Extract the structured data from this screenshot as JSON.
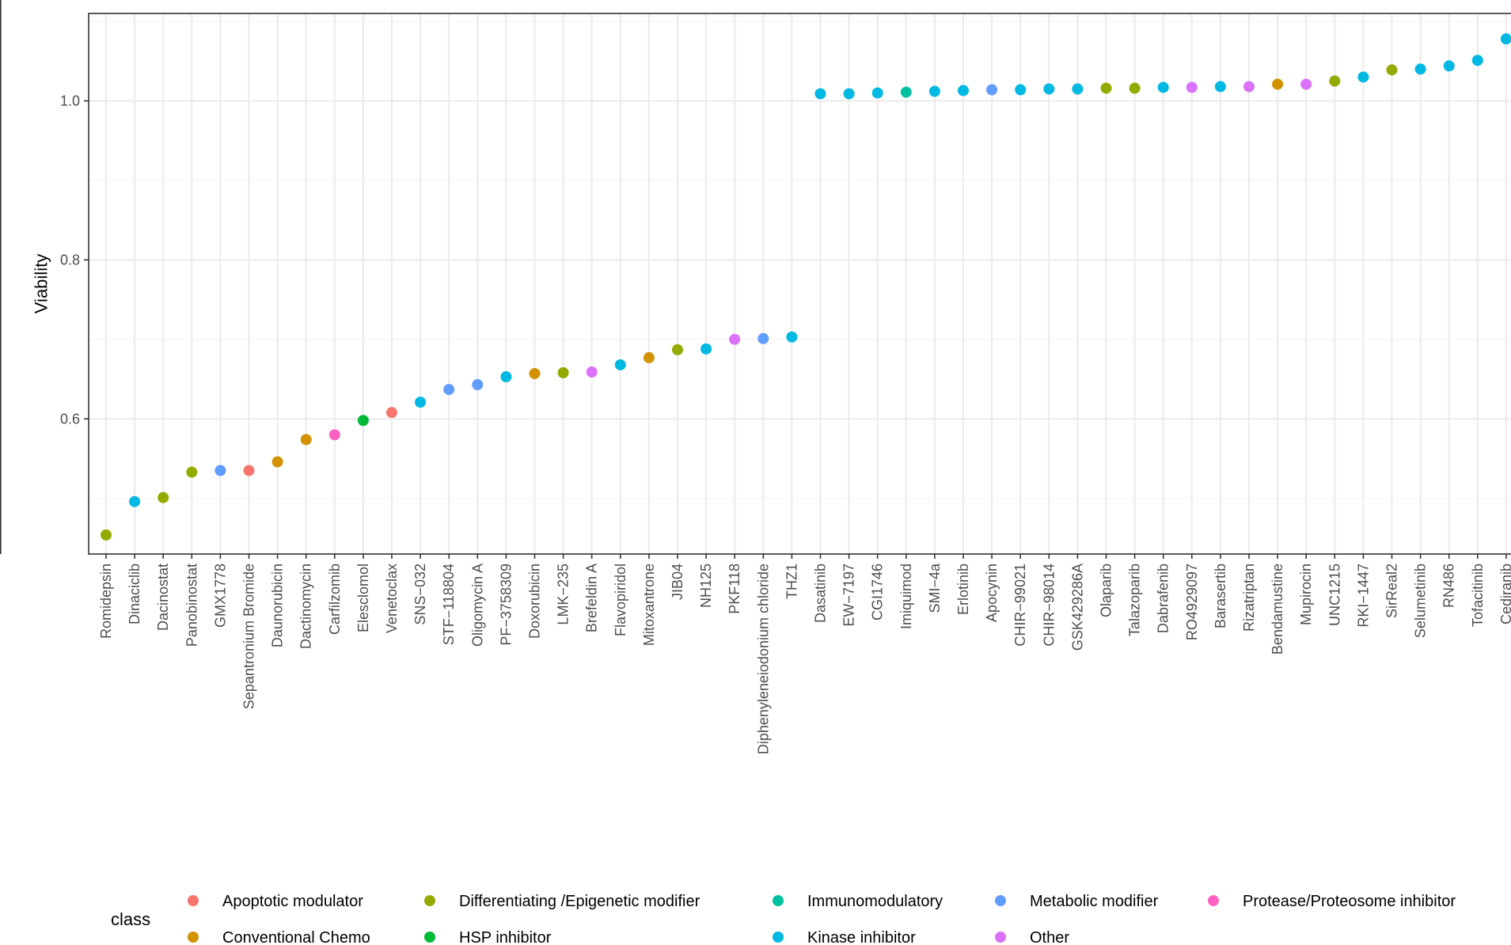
{
  "chart_data": {
    "type": "scatter",
    "ylabel": "Viability",
    "xlabel": "",
    "ylim": [
      0.43,
      1.11
    ],
    "yticks": [
      0.6,
      0.8,
      1.0
    ],
    "ytick_labels": [
      "0.6",
      "0.8",
      "1.0"
    ],
    "grid": true,
    "legend_title": "class",
    "legend_position": "bottom",
    "classes": [
      {
        "name": "Apoptotic modulator",
        "color": "#F8766D"
      },
      {
        "name": "Conventional Chemo",
        "color": "#D39200"
      },
      {
        "name": "Differentiating /Epigenetic modifier",
        "color": "#93AA00"
      },
      {
        "name": "HSP inhibitor",
        "color": "#00BA38"
      },
      {
        "name": "Immunomodulatory",
        "color": "#00C19F"
      },
      {
        "name": "Kinase inhibitor",
        "color": "#00B9E3"
      },
      {
        "name": "Metabolic modifier",
        "color": "#619CFF"
      },
      {
        "name": "Other",
        "color": "#DB72FB"
      },
      {
        "name": "Protease/Proteosome inhibitor",
        "color": "#FF61C3"
      }
    ],
    "points": [
      {
        "drug": "Romidepsin",
        "value": 0.454,
        "class": "Differentiating /Epigenetic modifier"
      },
      {
        "drug": "Dinaciclib",
        "value": 0.496,
        "class": "Kinase inhibitor"
      },
      {
        "drug": "Dacinostat",
        "value": 0.501,
        "class": "Differentiating /Epigenetic modifier"
      },
      {
        "drug": "Panobinostat",
        "value": 0.533,
        "class": "Differentiating /Epigenetic modifier"
      },
      {
        "drug": "GMX1778",
        "value": 0.535,
        "class": "Metabolic modifier"
      },
      {
        "drug": "Sepantronium Bromide",
        "value": 0.535,
        "class": "Apoptotic modulator"
      },
      {
        "drug": "Daunorubicin",
        "value": 0.546,
        "class": "Conventional Chemo"
      },
      {
        "drug": "Dactinomycin",
        "value": 0.574,
        "class": "Conventional Chemo"
      },
      {
        "drug": "Carfilzomib",
        "value": 0.58,
        "class": "Protease/Proteosome inhibitor"
      },
      {
        "drug": "Elesclomol",
        "value": 0.598,
        "class": "HSP inhibitor"
      },
      {
        "drug": "Venetoclax",
        "value": 0.608,
        "class": "Apoptotic modulator"
      },
      {
        "drug": "SNS−032",
        "value": 0.621,
        "class": "Kinase inhibitor"
      },
      {
        "drug": "STF−118804",
        "value": 0.637,
        "class": "Metabolic modifier"
      },
      {
        "drug": "Oligomycin A",
        "value": 0.643,
        "class": "Metabolic modifier"
      },
      {
        "drug": "PF−3758309",
        "value": 0.653,
        "class": "Kinase inhibitor"
      },
      {
        "drug": "Doxorubicin",
        "value": 0.657,
        "class": "Conventional Chemo"
      },
      {
        "drug": "LMK−235",
        "value": 0.658,
        "class": "Differentiating /Epigenetic modifier"
      },
      {
        "drug": "Brefeldin A",
        "value": 0.659,
        "class": "Other"
      },
      {
        "drug": "Flavopiridol",
        "value": 0.668,
        "class": "Kinase inhibitor"
      },
      {
        "drug": "Mitoxantrone",
        "value": 0.677,
        "class": "Conventional Chemo"
      },
      {
        "drug": "JIB04",
        "value": 0.687,
        "class": "Differentiating /Epigenetic modifier"
      },
      {
        "drug": "NH125",
        "value": 0.688,
        "class": "Kinase inhibitor"
      },
      {
        "drug": "PKF118",
        "value": 0.7,
        "class": "Other"
      },
      {
        "drug": "Diphenyleneiodonium chloride",
        "value": 0.701,
        "class": "Metabolic modifier"
      },
      {
        "drug": "THZ1",
        "value": 0.703,
        "class": "Kinase inhibitor"
      },
      {
        "drug": "Dasatinib",
        "value": 1.009,
        "class": "Kinase inhibitor"
      },
      {
        "drug": "EW−7197",
        "value": 1.009,
        "class": "Kinase inhibitor"
      },
      {
        "drug": "CGI1746",
        "value": 1.01,
        "class": "Kinase inhibitor"
      },
      {
        "drug": "Imiquimod",
        "value": 1.011,
        "class": "Immunomodulatory"
      },
      {
        "drug": "SMI−4a",
        "value": 1.012,
        "class": "Kinase inhibitor"
      },
      {
        "drug": "Erlotinib",
        "value": 1.013,
        "class": "Kinase inhibitor"
      },
      {
        "drug": "Apocynin",
        "value": 1.014,
        "class": "Metabolic modifier"
      },
      {
        "drug": "CHIR−99021",
        "value": 1.014,
        "class": "Kinase inhibitor"
      },
      {
        "drug": "CHIR−98014",
        "value": 1.015,
        "class": "Kinase inhibitor"
      },
      {
        "drug": "GSK429286A",
        "value": 1.015,
        "class": "Kinase inhibitor"
      },
      {
        "drug": "Olaparib",
        "value": 1.016,
        "class": "Differentiating /Epigenetic modifier"
      },
      {
        "drug": "Talazoparib",
        "value": 1.016,
        "class": "Differentiating /Epigenetic modifier"
      },
      {
        "drug": "Dabrafenib",
        "value": 1.017,
        "class": "Kinase inhibitor"
      },
      {
        "drug": "RO4929097",
        "value": 1.017,
        "class": "Other"
      },
      {
        "drug": "Barasertib",
        "value": 1.018,
        "class": "Kinase inhibitor"
      },
      {
        "drug": "Rizatriptan",
        "value": 1.018,
        "class": "Other"
      },
      {
        "drug": "Bendamustine",
        "value": 1.021,
        "class": "Conventional Chemo"
      },
      {
        "drug": "Mupirocin",
        "value": 1.021,
        "class": "Other"
      },
      {
        "drug": "UNC1215",
        "value": 1.025,
        "class": "Differentiating /Epigenetic modifier"
      },
      {
        "drug": "RKI−1447",
        "value": 1.03,
        "class": "Kinase inhibitor"
      },
      {
        "drug": "SirReal2",
        "value": 1.039,
        "class": "Differentiating /Epigenetic modifier"
      },
      {
        "drug": "Selumetinib",
        "value": 1.04,
        "class": "Kinase inhibitor"
      },
      {
        "drug": "RN486",
        "value": 1.044,
        "class": "Kinase inhibitor"
      },
      {
        "drug": "Tofacitinib",
        "value": 1.051,
        "class": "Kinase inhibitor"
      },
      {
        "drug": "Cediranib",
        "value": 1.078,
        "class": "Kinase inhibitor"
      }
    ]
  }
}
